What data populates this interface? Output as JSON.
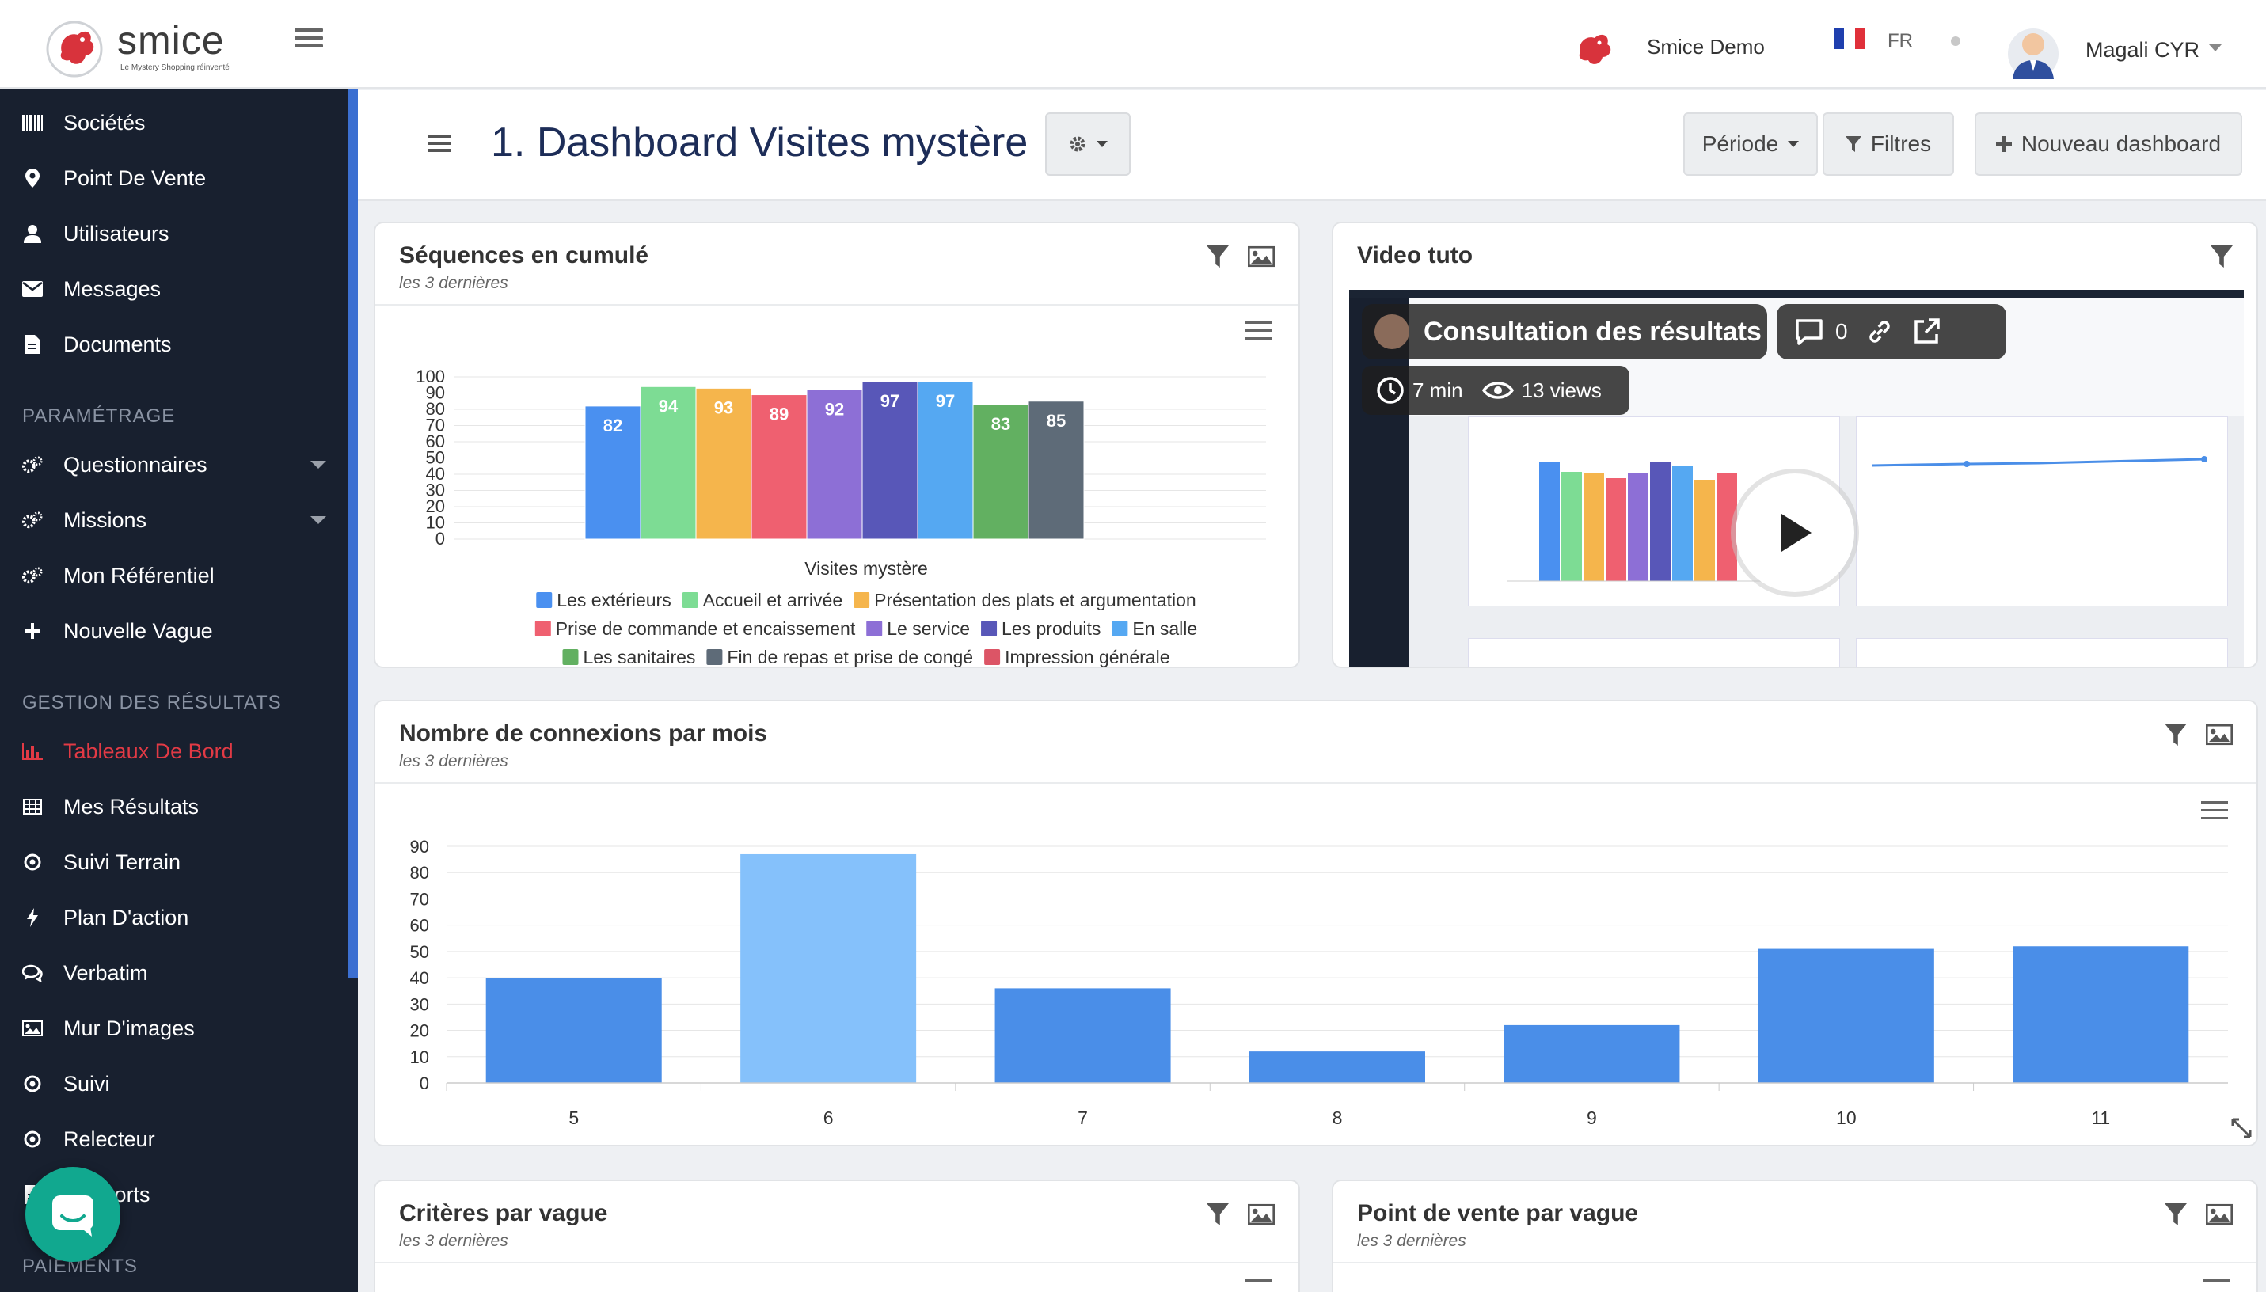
{
  "header": {
    "logo_text": "smice",
    "logo_tagline": "Le Mystery Shopping réinventé",
    "brand_name": "Smice Demo",
    "language": "FR",
    "user_name": "Magali CYR"
  },
  "sidebar": {
    "items": [
      {
        "label": "Sociétés",
        "icon": "barcode-icon"
      },
      {
        "label": "Point De Vente",
        "icon": "map-marker-icon"
      },
      {
        "label": "Utilisateurs",
        "icon": "user-icon"
      },
      {
        "label": "Messages",
        "icon": "envelope-icon"
      },
      {
        "label": "Documents",
        "icon": "document-icon"
      }
    ],
    "section_settings": "PARAMÉTRAGE",
    "settings_items": [
      {
        "label": "Questionnaires",
        "icon": "cogs-icon"
      },
      {
        "label": "Missions",
        "icon": "cogs-icon"
      },
      {
        "label": "Mon Référentiel",
        "icon": "cogs-icon"
      },
      {
        "label": "Nouvelle Vague",
        "icon": "plus-icon"
      }
    ],
    "section_results": "GESTION DES RÉSULTATS",
    "results_items": [
      {
        "label": "Tableaux De Bord",
        "icon": "bar-chart-icon"
      },
      {
        "label": "Mes Résultats",
        "icon": "table-icon"
      },
      {
        "label": "Suivi Terrain",
        "icon": "circle-icon"
      },
      {
        "label": "Plan D'action",
        "icon": "bolt-icon"
      },
      {
        "label": "Verbatim",
        "icon": "comments-icon"
      },
      {
        "label": "Mur D'images",
        "icon": "image-icon"
      },
      {
        "label": "Suivi",
        "icon": "circle-icon"
      },
      {
        "label": "Relecteur",
        "icon": "circle-icon"
      },
      {
        "label": "Rapports",
        "icon": "document-icon"
      }
    ],
    "section_payments": "PAIEMENTS"
  },
  "page": {
    "title": "1. Dashboard Visites mystère",
    "period_label": "Période",
    "filters_label": "Filtres",
    "new_dashboard_label": "Nouveau dashboard"
  },
  "cards": {
    "sequences": {
      "title": "Séquences en cumulé",
      "subtitle": "les 3 dernières"
    },
    "video": {
      "title": "Video tuto",
      "video_title": "Consultation des résultats",
      "comments": "0",
      "duration": "7 min",
      "views": "13 views"
    },
    "connections": {
      "title": "Nombre de connexions par mois",
      "subtitle": "les 3 dernières"
    },
    "criteria": {
      "title": "Critères par vague",
      "subtitle": "les 3 dernières"
    },
    "pos": {
      "title": "Point de vente par vague",
      "subtitle": "les 3 dernières"
    }
  },
  "colors": {
    "sidebar_bg": "#18202f",
    "accent_red": "#e23a45",
    "accent_blue": "#3b6fd1",
    "title_navy": "#1d2d58",
    "chat_teal": "#11a88f"
  },
  "chart_data": [
    {
      "type": "bar",
      "xlabel": "Visites mystère",
      "ylim": [
        0,
        100
      ],
      "yticks": [
        0,
        10,
        20,
        30,
        40,
        50,
        60,
        70,
        80,
        90,
        100
      ],
      "grid": true,
      "legend_position": "bottom",
      "series": [
        {
          "name": "Les extérieurs",
          "values": [
            82
          ],
          "color": "#4a90f0"
        },
        {
          "name": "Accueil et arrivée",
          "values": [
            94
          ],
          "color": "#7ddc94"
        },
        {
          "name": "Présentation des plats et argumentation",
          "values": [
            93
          ],
          "color": "#f5b54c"
        },
        {
          "name": "Prise de commande et encaissement",
          "values": [
            89
          ],
          "color": "#ef6070"
        },
        {
          "name": "Le service",
          "values": [
            92
          ],
          "color": "#8d6fd6"
        },
        {
          "name": "Les produits",
          "values": [
            97
          ],
          "color": "#5857b8"
        },
        {
          "name": "En salle",
          "values": [
            97
          ],
          "color": "#55a8f2"
        },
        {
          "name": "Les sanitaires",
          "values": [
            83
          ],
          "color": "#62b061"
        },
        {
          "name": "Fin de repas et prise de congé",
          "values": [
            85
          ],
          "color": "#5e6b78"
        },
        {
          "name": "Impression générale",
          "values": [],
          "color": "#dc5566"
        }
      ]
    },
    {
      "type": "bar",
      "categories": [
        "5",
        "6",
        "7",
        "8",
        "9",
        "10",
        "11"
      ],
      "values": [
        40,
        87,
        36,
        12,
        22,
        51,
        52
      ],
      "ylim": [
        0,
        90
      ],
      "yticks": [
        0,
        10,
        20,
        30,
        40,
        50,
        60,
        70,
        80,
        90
      ],
      "grid": true,
      "highlight_index": 1,
      "color": "#4a8ee8",
      "highlight_color": "#85c1fb"
    }
  ]
}
